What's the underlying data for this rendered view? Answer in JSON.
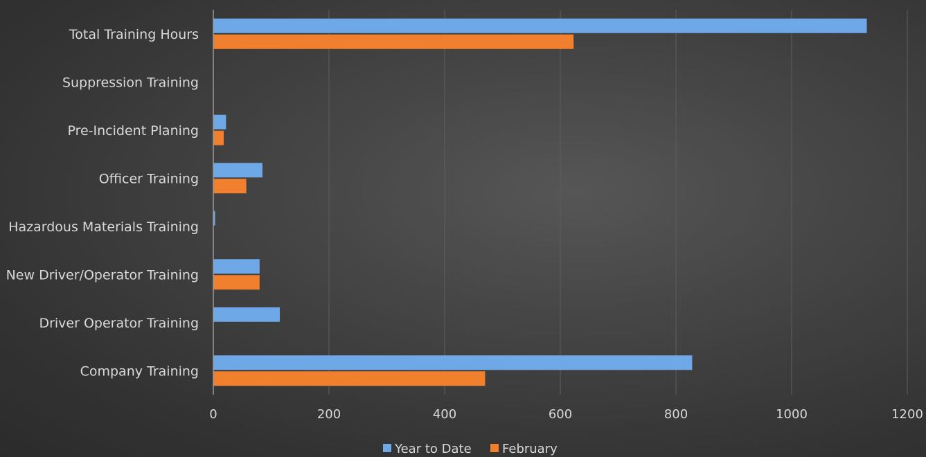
{
  "chart_data": {
    "type": "bar",
    "orientation": "horizontal",
    "title": "",
    "xlabel": "",
    "ylabel": "",
    "categories": [
      "Total Training Hours",
      "Suppression Training",
      "Pre-Incident Planing",
      "Officer Training",
      "Hazardous Materials Training",
      "New Driver/Operator Training",
      "Driver Operator Training",
      "Company Training"
    ],
    "series": [
      {
        "name": "Year to Date",
        "color": "#6fa8e6",
        "values": [
          1130,
          0,
          22,
          85,
          3,
          80,
          115,
          828
        ]
      },
      {
        "name": "February",
        "color": "#f07f2e",
        "values": [
          623,
          0,
          18,
          57,
          0,
          80,
          0,
          470
        ]
      }
    ],
    "xlim": [
      0,
      1200
    ],
    "xticks": [
      "0",
      "200",
      "400",
      "600",
      "800",
      "1000",
      "1200"
    ],
    "grid": true,
    "legend_position": "bottom"
  }
}
